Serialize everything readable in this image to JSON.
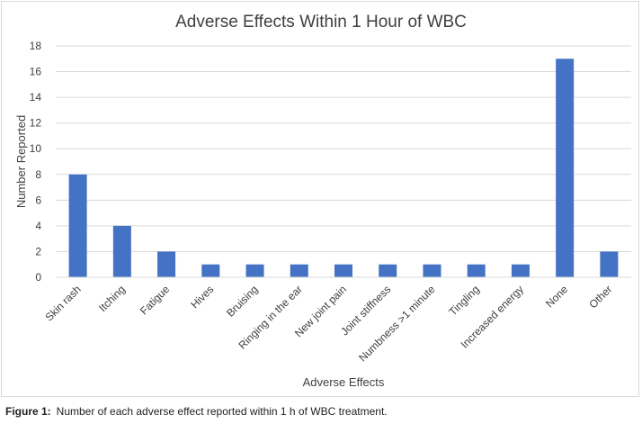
{
  "caption": {
    "label": "Figure 1:",
    "text": "Number of each adverse effect reported within 1 h of WBC treatment."
  },
  "colors": {
    "bar": "#4472c4",
    "grid": "#d9d9d9",
    "text": "#404040"
  },
  "chart_data": {
    "type": "bar",
    "title": "Adverse Effects Within 1 Hour of WBC",
    "xlabel": "Adverse Effects",
    "ylabel": "Number Reported",
    "ylim": [
      0,
      18
    ],
    "yticks": [
      0,
      2,
      4,
      6,
      8,
      10,
      12,
      14,
      16,
      18
    ],
    "grid": true,
    "legend": "none",
    "categories": [
      "Skin rash",
      "Itching",
      "Fatigue",
      "Hives",
      "Bruising",
      "Ringing in the ear",
      "New joint pain",
      "Joint stiffness",
      "Numbness >1 minute",
      "Tingling",
      "Increased energy",
      "None",
      "Other"
    ],
    "values": [
      8,
      4,
      2,
      1,
      1,
      1,
      1,
      1,
      1,
      1,
      1,
      17,
      2
    ]
  }
}
